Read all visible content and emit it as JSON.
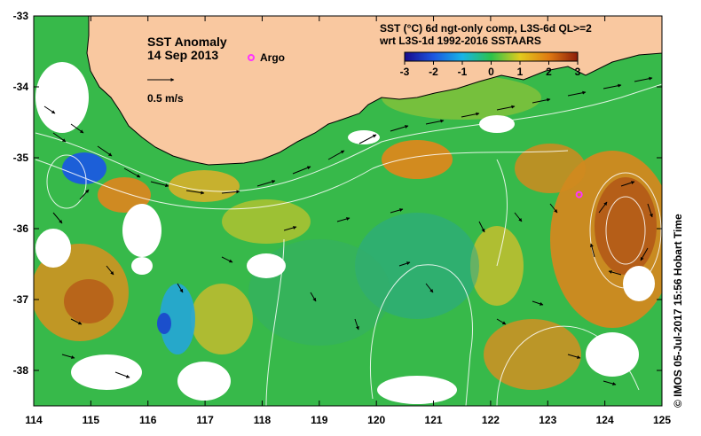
{
  "title": "SST Anomaly",
  "date": "14 Sep 2013",
  "argo_label": "Argo",
  "velocity_scale_label": "0.5 m/s",
  "colorbar": {
    "title_line1": "SST (°C) 6d ngt-only comp, L3S-6d QL>=2",
    "title_line2": "wrt L3S-1d 1992-2016 SSTAARS",
    "ticks": [
      "-3",
      "-2",
      "-1",
      "0",
      "1",
      "2",
      "3"
    ],
    "min": -3,
    "max": 3,
    "colors": [
      "#1a0a8c",
      "#1c56e0",
      "#19b4e6",
      "#2bc24a",
      "#e2cb1d",
      "#e07a12",
      "#8c1c0a"
    ]
  },
  "x_axis": {
    "min": 114,
    "max": 125,
    "ticks": [
      "114",
      "115",
      "116",
      "117",
      "118",
      "119",
      "120",
      "121",
      "122",
      "123",
      "124",
      "125"
    ]
  },
  "y_axis": {
    "min": -38.5,
    "max": -33,
    "ticks": [
      "-33",
      "-34",
      "-35",
      "-36",
      "-37",
      "-38"
    ]
  },
  "credit": "© IMOS 05-Jul-2017 15:56 Hobart Time",
  "land_color": "#f9c8a0",
  "argo_float": {
    "lon": 123.55,
    "lat": -35.52,
    "color": "#ff33ff"
  }
}
